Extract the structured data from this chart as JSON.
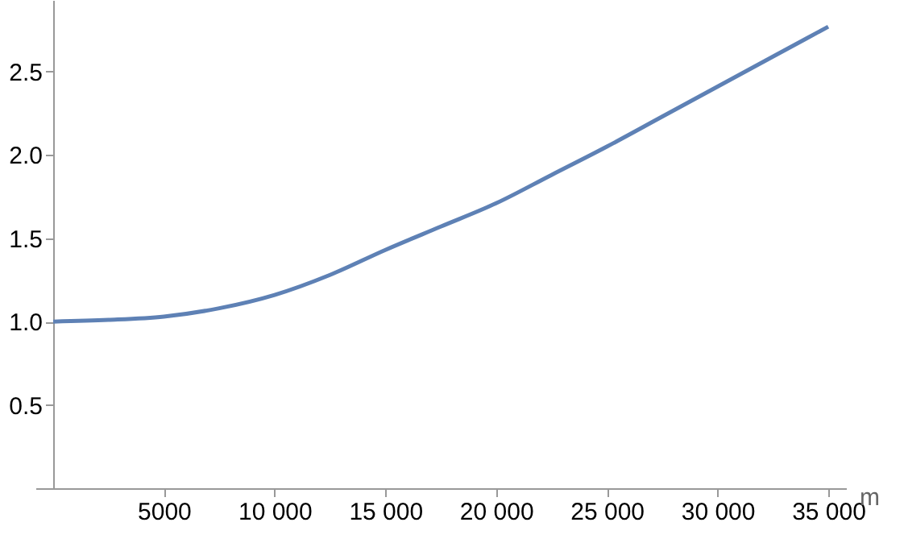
{
  "chart_data": {
    "type": "line",
    "xlabel": "m",
    "x": [
      0,
      2500,
      5000,
      7500,
      10000,
      12500,
      15000,
      17500,
      20000,
      22500,
      25000,
      27500,
      30000,
      32500,
      35000
    ],
    "series": [
      {
        "color": "#5e81b5",
        "values": [
          1.0,
          1.01,
          1.03,
          1.08,
          1.16,
          1.28,
          1.43,
          1.57,
          1.71,
          1.88,
          2.05,
          2.23,
          2.41,
          2.59,
          2.77
        ]
      }
    ],
    "xlim": [
      -800,
      35800
    ],
    "xticks": [
      5000,
      10000,
      15000,
      20000,
      25000,
      30000,
      35000
    ],
    "ylim": [
      0,
      2.93
    ],
    "yticks": [
      0.5,
      {
        "value": 1,
        "label": "1.0"
      },
      1.5,
      {
        "value": 2,
        "label": "2.0"
      },
      2.5
    ],
    "grid": false,
    "marker": "none",
    "line_style": "solid"
  }
}
